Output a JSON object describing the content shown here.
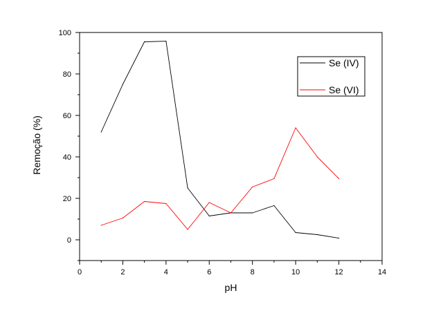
{
  "chart_data": {
    "type": "line",
    "xlabel": "pH",
    "ylabel": "Remoção (%)",
    "xlim": [
      0,
      14
    ],
    "ylim": [
      -10,
      100
    ],
    "xticks": [
      0,
      2,
      4,
      6,
      8,
      10,
      12,
      14
    ],
    "yticks": [
      0,
      20,
      40,
      60,
      80,
      100
    ],
    "grid": false,
    "legend_position": "top-right",
    "series": [
      {
        "name": "Se (IV)",
        "color": "#000000",
        "x": [
          1,
          2,
          3,
          4,
          5,
          6,
          7,
          8,
          9,
          10,
          11,
          12
        ],
        "y": [
          52,
          75,
          95.5,
          95.8,
          25,
          11.5,
          13,
          13,
          16.5,
          3.5,
          2.5,
          0.8
        ]
      },
      {
        "name": "Se (VI)",
        "color": "#ff0000",
        "x": [
          1,
          2,
          3,
          4,
          5,
          6,
          7,
          8,
          9,
          10,
          11,
          12
        ],
        "y": [
          7,
          10.5,
          18.5,
          17.5,
          5,
          18,
          13,
          25.5,
          29.5,
          54,
          40,
          29.5
        ]
      }
    ]
  }
}
